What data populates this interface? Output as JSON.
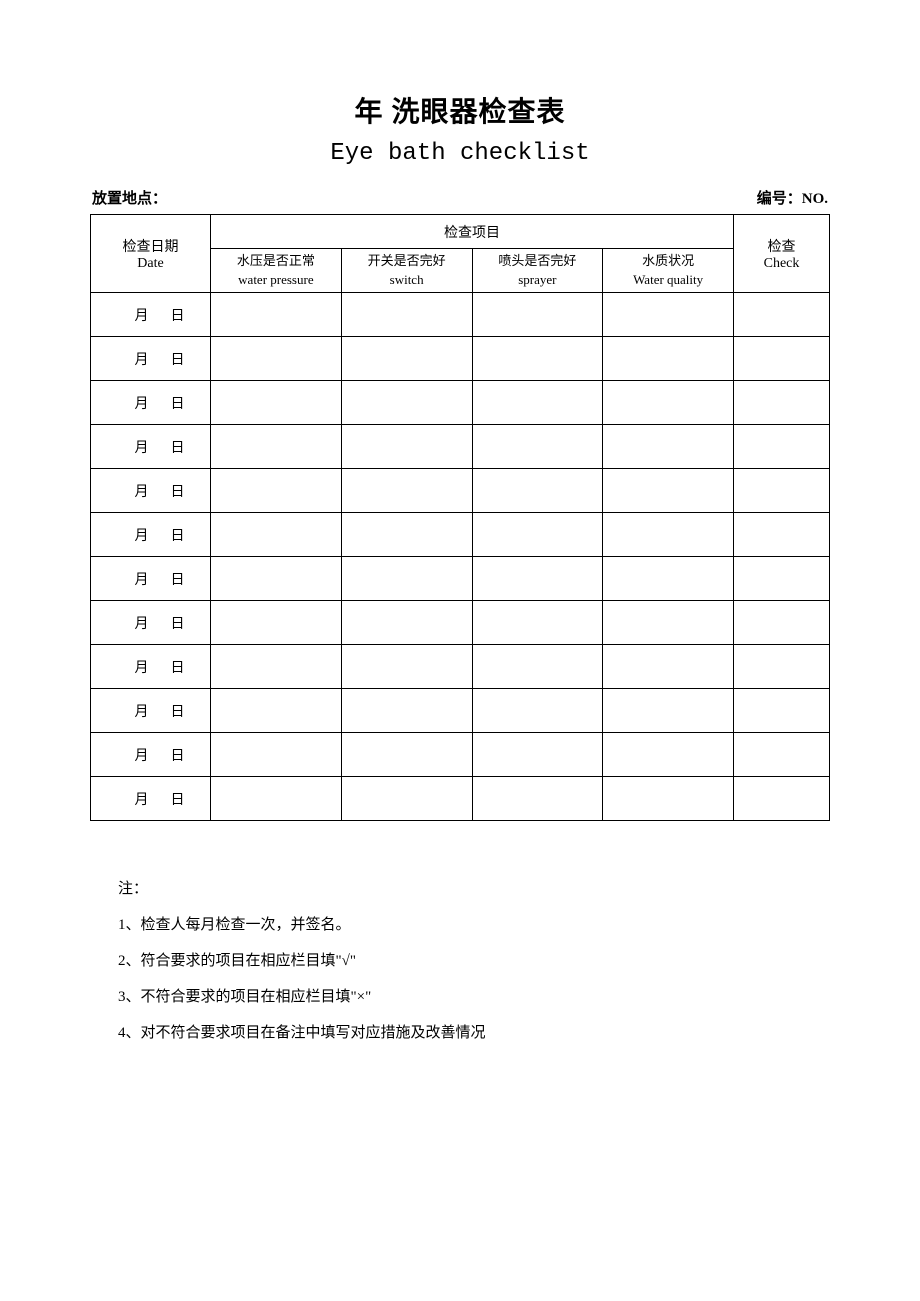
{
  "title_cn": "年 洗眼器检查表",
  "title_en": "Eye bath checklist",
  "header": {
    "location_label": "放置地点：",
    "number_label": "编号：NO."
  },
  "table": {
    "date_header_cn": "检查日期",
    "date_header_en": "Date",
    "items_header": "检查项目",
    "check_header_cn": "检查",
    "check_header_en": "Check",
    "columns": [
      {
        "cn": "水压是否正常",
        "en": "water pressure"
      },
      {
        "cn": "开关是否完好",
        "en": "switch"
      },
      {
        "cn": "喷头是否完好",
        "en": "sprayer"
      },
      {
        "cn": "水质状况",
        "en": "Water  quality"
      }
    ],
    "date_cell": {
      "month_label": "月",
      "day_label": "日"
    },
    "row_count": 12
  },
  "notes": {
    "heading": "注：",
    "items": [
      "1、检查人每月检查一次，并签名。",
      "2、符合要求的项目在相应栏目填\"√\"",
      "3、不符合要求的项目在相应栏目填\"×\"",
      "4、对不符合要求项目在备注中填写对应措施及改善情况"
    ]
  },
  "colors": {
    "text": "#000000",
    "background": "#ffffff",
    "border": "#000000"
  },
  "fonts": {
    "title_cn_size": 28,
    "title_en_size": 24,
    "body_size": 15,
    "table_size": 14
  }
}
